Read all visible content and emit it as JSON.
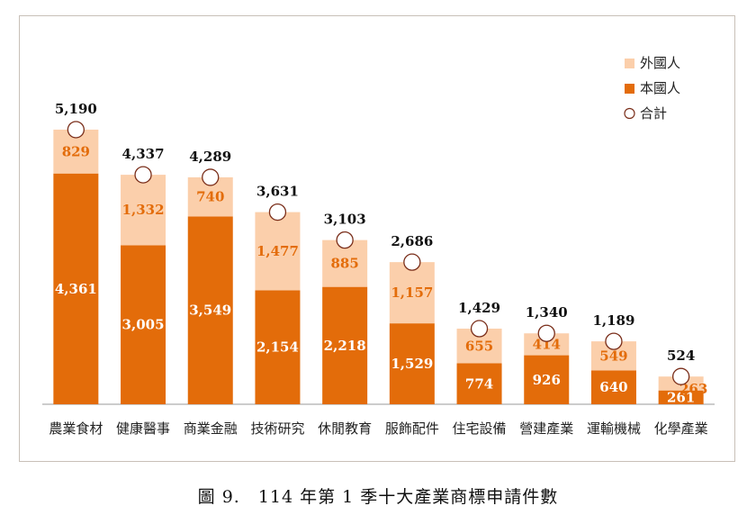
{
  "caption": "圖 9.　114 年第 1 季十大產業商標申請件數",
  "colors": {
    "foreign": "#fbcfab",
    "domestic": "#e36c0a",
    "total_marker": "#7a2e1a",
    "foreign_label": "#e36c0a"
  },
  "chart_data": {
    "type": "bar",
    "stacked": true,
    "categories": [
      "農業食材",
      "健康醫事",
      "商業金融",
      "技術研究",
      "休閒教育",
      "服飾配件",
      "住宅設備",
      "營建產業",
      "運輸機械",
      "化學產業"
    ],
    "series": [
      {
        "name": "本國人",
        "values": [
          4361,
          3005,
          3549,
          2154,
          2218,
          1529,
          774,
          926,
          640,
          261
        ],
        "labels": [
          "4,361",
          "3,005",
          "3,549",
          "2,154",
          "2,218",
          "1,529",
          "774",
          "926",
          "640",
          "261"
        ]
      },
      {
        "name": "外國人",
        "values": [
          829,
          1332,
          740,
          1477,
          885,
          1157,
          655,
          414,
          549,
          263
        ],
        "labels": [
          "829",
          "1,332",
          "740",
          "1,477",
          "885",
          "1,157",
          "655",
          "414",
          "549",
          "263"
        ]
      }
    ],
    "totals": {
      "name": "合計",
      "values": [
        5190,
        4337,
        4289,
        3631,
        3103,
        2686,
        1429,
        1340,
        1189,
        524
      ],
      "labels": [
        "5,190",
        "4,337",
        "4,289",
        "3,631",
        "3,103",
        "2,686",
        "1,429",
        "1,340",
        "1,189",
        "524"
      ]
    },
    "legend": [
      "外國人",
      "本國人",
      "合計"
    ],
    "legend_position": "top-right",
    "ylim": [
      0,
      5700
    ],
    "grid": false
  }
}
